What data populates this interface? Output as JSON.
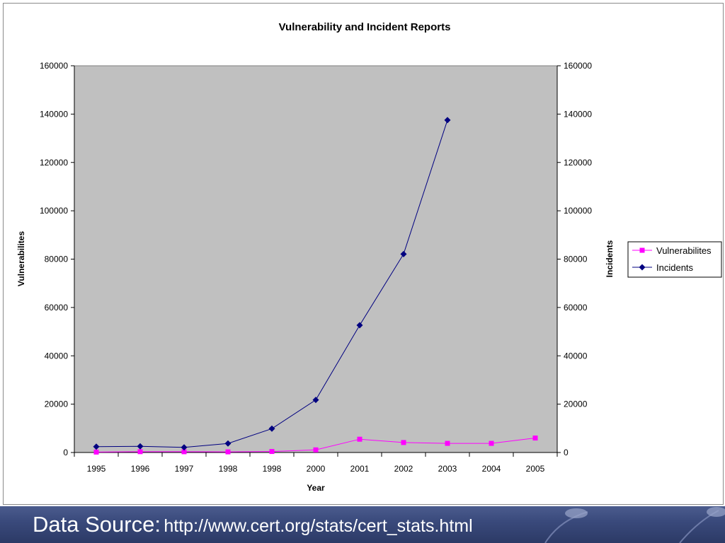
{
  "footer": {
    "source_label": "Data Source:",
    "source_url": "http://www.cert.org/stats/cert_stats.html"
  },
  "chart_data": {
    "type": "line",
    "title": "Vulnerability and Incident Reports",
    "xlabel": "Year",
    "ylabel": "Vulnerabilites",
    "y2label": "Incidents",
    "categories": [
      "1995",
      "1996",
      "1997",
      "1998",
      "1998",
      "2000",
      "2001",
      "2002",
      "2003",
      "2004",
      "2005"
    ],
    "ylim": [
      0,
      160000
    ],
    "y2lim": [
      0,
      160000
    ],
    "yticks": [
      0,
      20000,
      40000,
      60000,
      80000,
      100000,
      120000,
      140000,
      160000
    ],
    "grid": false,
    "plot_background": "#c0c0c0",
    "legend_position": "right",
    "series": [
      {
        "name": "Vulnerabilites",
        "axis": "left",
        "marker": "square",
        "color": "#ff00ff",
        "values": [
          171,
          345,
          311,
          262,
          417,
          1090,
          5500,
          4129,
          3784,
          3780,
          5990
        ]
      },
      {
        "name": "Incidents",
        "axis": "right",
        "marker": "diamond",
        "color": "#000080",
        "values": [
          2412,
          2573,
          2134,
          3734,
          9859,
          21756,
          52658,
          82094,
          137529,
          null,
          null
        ]
      }
    ]
  }
}
